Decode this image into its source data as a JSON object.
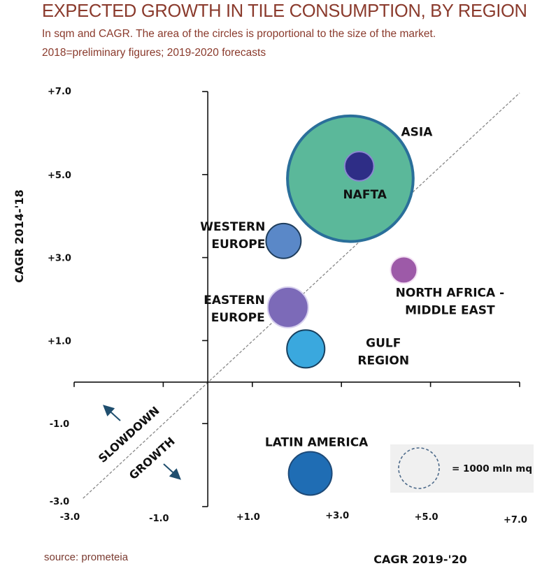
{
  "header": {
    "title": "EXPECTED GROWTH IN TILE CONSUMPTION, BY REGION",
    "subtitle_line1": "In sqm and CAGR. The area of the circles is proportional to the size of the market.",
    "subtitle_line2": "2018=preliminary figures; 2019-2020 forecasts"
  },
  "footer": {
    "source": "source: prometeia"
  },
  "chart_data": {
    "type": "scatter",
    "subtype": "bubble",
    "title": "EXPECTED GROWTH IN TILE CONSUMPTION, BY REGION",
    "xlabel": "CAGR 2019-'20",
    "ylabel": "CAGR 2014-'18",
    "xlim": [
      -3.0,
      7.0
    ],
    "ylim": [
      -3.0,
      7.0
    ],
    "x_ticks": [
      -3.0,
      -1.0,
      1.0,
      3.0,
      5.0,
      7.0
    ],
    "x_tick_labels": [
      "-3.0",
      "-1.0",
      "+1.0",
      "+3.0",
      "+5.0",
      "+7.0"
    ],
    "y_ticks": [
      -3.0,
      -1.0,
      1.0,
      3.0,
      5.0,
      7.0
    ],
    "y_tick_labels": [
      "-3.0",
      "-1.0",
      "+1.0",
      "+3.0",
      "+5.0",
      "+7.0"
    ],
    "grid": false,
    "reference_line": {
      "type": "y=x",
      "style": "dashed",
      "color": "#888888"
    },
    "diagonal_labels": {
      "above": "SLOWDOWN",
      "below": "GROWTH"
    },
    "size_unit": "mln mq",
    "legend": {
      "label": "= 1000 mln mq",
      "reference_size": 1000,
      "placement": "bottom-right"
    },
    "series": [
      {
        "name": "ASIA",
        "x": 3.2,
        "y": 4.9,
        "size": 9600,
        "color": "#5bb89a",
        "stroke": "#2a6f9a",
        "label_lines": [
          "ASIA"
        ]
      },
      {
        "name": "NAFTA",
        "x": 3.4,
        "y": 5.2,
        "size": 520,
        "color": "#2e2d86",
        "stroke": "#8a87d0",
        "label_lines": [
          "NAFTA"
        ]
      },
      {
        "name": "WESTERN EUROPE",
        "x": 1.7,
        "y": 3.4,
        "size": 740,
        "color": "#5a88c8",
        "stroke": "#1e3d5c",
        "label_lines": [
          "WESTERN",
          "EUROPE"
        ]
      },
      {
        "name": "NORTH AFRICA - MIDDLE EAST",
        "x": 4.4,
        "y": 2.7,
        "size": 430,
        "color": "#9d5aa8",
        "stroke": "#f3e0f3",
        "label_lines": [
          "NORTH AFRICA -",
          "MIDDLE EAST"
        ]
      },
      {
        "name": "EASTERN EUROPE",
        "x": 1.8,
        "y": 1.8,
        "size": 1000,
        "color": "#7c6ab8",
        "stroke": "#d6cfee",
        "label_lines": [
          "EASTERN",
          "EUROPE"
        ]
      },
      {
        "name": "GULF REGION",
        "x": 2.2,
        "y": 0.8,
        "size": 870,
        "color": "#3aa8de",
        "stroke": "#17405f",
        "label_lines": [
          "GULF",
          "REGION"
        ]
      },
      {
        "name": "LATIN AMERICA",
        "x": 2.3,
        "y": -2.2,
        "size": 1140,
        "color": "#1f6db4",
        "stroke": "#1d4a78",
        "label_lines": [
          "LATIN AMERICA"
        ]
      }
    ]
  }
}
